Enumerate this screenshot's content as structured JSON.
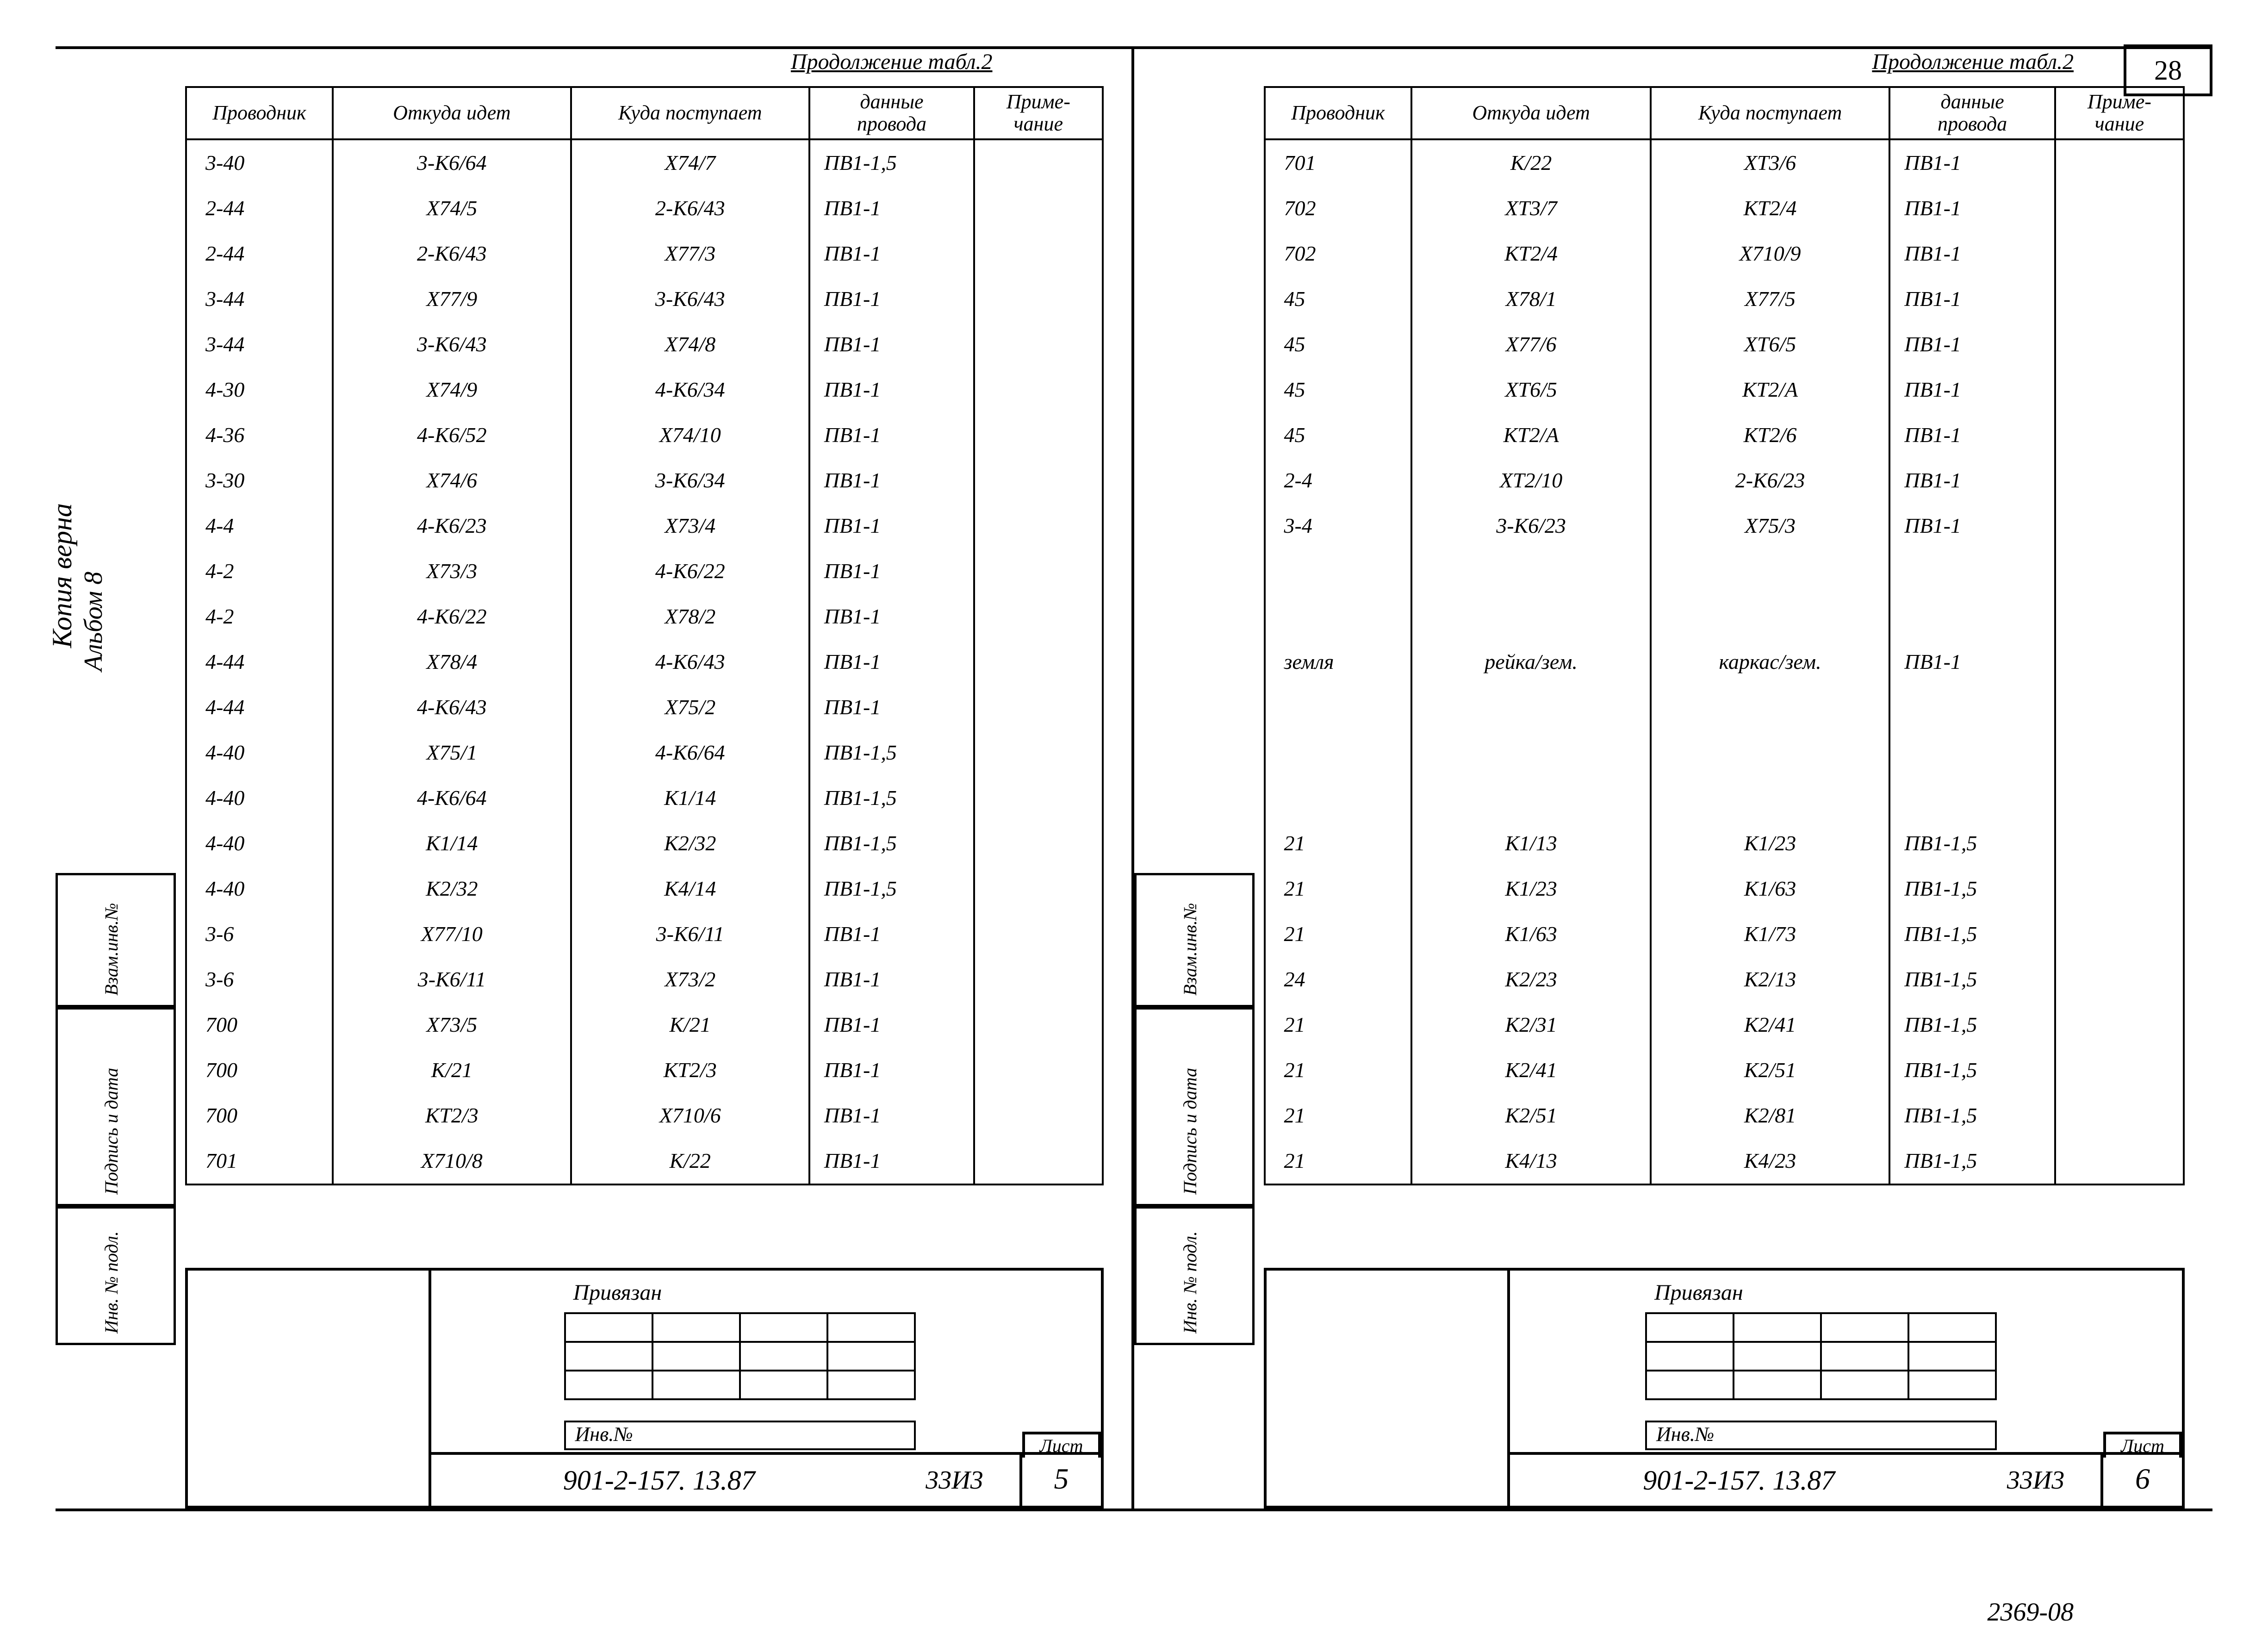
{
  "page_number": "28",
  "continuation": "Продолжение табл.2",
  "headers": {
    "c1": "Проводник",
    "c2": "Откуда идет",
    "c3": "Куда поступает",
    "c4a": "данные",
    "c4b": "провода",
    "c5a": "Приме-",
    "c5b": "чание"
  },
  "left_rows": [
    [
      "3-40",
      "3-К6/64",
      "Х74/7",
      "ПВ1-1,5",
      ""
    ],
    [
      "2-44",
      "Х74/5",
      "2-К6/43",
      "ПВ1-1",
      ""
    ],
    [
      "2-44",
      "2-К6/43",
      "Х77/3",
      "ПВ1-1",
      ""
    ],
    [
      "3-44",
      "Х77/9",
      "3-К6/43",
      "ПВ1-1",
      ""
    ],
    [
      "3-44",
      "3-К6/43",
      "Х74/8",
      "ПВ1-1",
      ""
    ],
    [
      "4-30",
      "Х74/9",
      "4-К6/34",
      "ПВ1-1",
      ""
    ],
    [
      "4-36",
      "4-К6/52",
      "Х74/10",
      "ПВ1-1",
      ""
    ],
    [
      "3-30",
      "Х74/6",
      "3-К6/34",
      "ПВ1-1",
      ""
    ],
    [
      "4-4",
      "4-К6/23",
      "Х73/4",
      "ПВ1-1",
      ""
    ],
    [
      "4-2",
      "Х73/3",
      "4-К6/22",
      "ПВ1-1",
      ""
    ],
    [
      "4-2",
      "4-К6/22",
      "Х78/2",
      "ПВ1-1",
      ""
    ],
    [
      "4-44",
      "Х78/4",
      "4-К6/43",
      "ПВ1-1",
      ""
    ],
    [
      "4-44",
      "4-К6/43",
      "Х75/2",
      "ПВ1-1",
      ""
    ],
    [
      "4-40",
      "Х75/1",
      "4-К6/64",
      "ПВ1-1,5",
      ""
    ],
    [
      "4-40",
      "4-К6/64",
      "К1/14",
      "ПВ1-1,5",
      ""
    ],
    [
      "4-40",
      "К1/14",
      "К2/32",
      "ПВ1-1,5",
      ""
    ],
    [
      "4-40",
      "К2/32",
      "К4/14",
      "ПВ1-1,5",
      ""
    ],
    [
      "3-6",
      "Х77/10",
      "3-К6/11",
      "ПВ1-1",
      ""
    ],
    [
      "3-6",
      "3-К6/11",
      "Х73/2",
      "ПВ1-1",
      ""
    ],
    [
      "700",
      "Х73/5",
      "К/21",
      "ПВ1-1",
      ""
    ],
    [
      "700",
      "К/21",
      "КТ2/3",
      "ПВ1-1",
      ""
    ],
    [
      "700",
      "КТ2/3",
      "Х710/6",
      "ПВ1-1",
      ""
    ],
    [
      "701",
      "Х710/8",
      "К/22",
      "ПВ1-1",
      ""
    ]
  ],
  "right_rows": [
    [
      "701",
      "К/22",
      "ХТ3/6",
      "ПВ1-1",
      ""
    ],
    [
      "702",
      "ХТ3/7",
      "КТ2/4",
      "ПВ1-1",
      ""
    ],
    [
      "702",
      "КТ2/4",
      "Х710/9",
      "ПВ1-1",
      ""
    ],
    [
      "45",
      "Х78/1",
      "Х77/5",
      "ПВ1-1",
      ""
    ],
    [
      "45",
      "Х77/6",
      "ХТ6/5",
      "ПВ1-1",
      ""
    ],
    [
      "45",
      "ХТ6/5",
      "КТ2/А",
      "ПВ1-1",
      ""
    ],
    [
      "45",
      "КТ2/А",
      "КТ2/6",
      "ПВ1-1",
      ""
    ],
    [
      "2-4",
      "ХТ2/10",
      "2-К6/23",
      "ПВ1-1",
      ""
    ],
    [
      "3-4",
      "3-К6/23",
      "Х75/3",
      "ПВ1-1",
      ""
    ],
    [
      "",
      "",
      "",
      "",
      ""
    ],
    [
      "",
      "",
      "",
      "",
      ""
    ],
    [
      "земля",
      "рейка/зем.",
      "каркас/зем.",
      "ПВ1-1",
      ""
    ],
    [
      "",
      "",
      "",
      "",
      ""
    ],
    [
      "",
      "",
      "",
      "",
      ""
    ],
    [
      "",
      "",
      "",
      "",
      ""
    ],
    [
      "21",
      "К1/13",
      "К1/23",
      "ПВ1-1,5",
      ""
    ],
    [
      "21",
      "К1/23",
      "К1/63",
      "ПВ1-1,5",
      ""
    ],
    [
      "21",
      "К1/63",
      "К1/73",
      "ПВ1-1,5",
      ""
    ],
    [
      "24",
      "К2/23",
      "К2/13",
      "ПВ1-1,5",
      ""
    ],
    [
      "21",
      "К2/31",
      "К2/41",
      "ПВ1-1,5",
      ""
    ],
    [
      "21",
      "К2/41",
      "К2/51",
      "ПВ1-1,5",
      ""
    ],
    [
      "21",
      "К2/51",
      "К2/81",
      "ПВ1-1,5",
      ""
    ],
    [
      "21",
      "К4/13",
      "К4/23",
      "ПВ1-1,5",
      ""
    ]
  ],
  "titleblock": {
    "priv": "Привязан",
    "inv": "Инв.№",
    "doc": "901-2-157. 13.87",
    "zz": "33И3",
    "sheet_label": "Лист"
  },
  "sheet_left": "5",
  "sheet_right": "6",
  "doc_code": "2369-08",
  "side": {
    "kopia": "Копия верна",
    "album": "Альбом 8",
    "s1": "Инв. № подл.",
    "s2": "Подпись и дата",
    "s3": "Взам.инв.№"
  }
}
